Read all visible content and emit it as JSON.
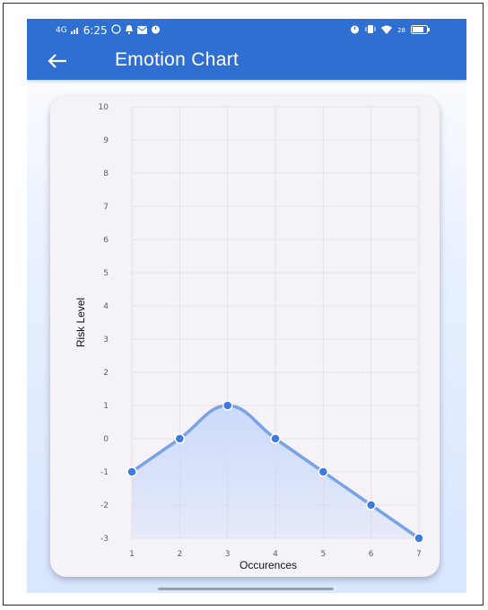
{
  "status_bar": {
    "network": "4G",
    "time": "6:25",
    "right_text": "28"
  },
  "app_bar": {
    "title": "Emotion Chart"
  },
  "colors": {
    "primary": "#2f6fd2",
    "line": "#7aa3e5",
    "point": "#3c7be0",
    "area": "#c9d9fb",
    "card": "#f6f3f8"
  },
  "chart_data": {
    "type": "line",
    "x": [
      1,
      2,
      3,
      4,
      5,
      6,
      7
    ],
    "values": [
      -1,
      0,
      1,
      0,
      -1,
      -2,
      -3
    ],
    "xlabel": "Occurences",
    "ylabel": "Risk Level",
    "xlim": [
      1,
      7
    ],
    "ylim": [
      -3,
      10
    ],
    "x_ticks": [
      "1",
      "2",
      "3",
      "4",
      "5",
      "6",
      "7"
    ],
    "y_ticks": [
      "10",
      "9",
      "8",
      "7",
      "6",
      "5",
      "4",
      "3",
      "2",
      "1",
      "0",
      "-1",
      "-2",
      "-3"
    ],
    "grid": true,
    "smooth": true,
    "fill_area": true
  }
}
